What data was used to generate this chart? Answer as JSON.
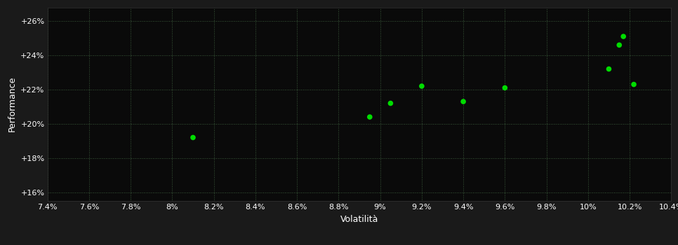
{
  "points_x": [
    0.081,
    0.0895,
    0.0905,
    0.092,
    0.094,
    0.096,
    0.101,
    0.1015,
    0.1017,
    0.1022
  ],
  "points_y": [
    0.192,
    0.204,
    0.212,
    0.222,
    0.213,
    0.221,
    0.232,
    0.246,
    0.251,
    0.223
  ],
  "dot_color": "#00dd00",
  "background_color": "#1a1a1a",
  "plot_bg_color": "#0a0a0a",
  "grid_color": "#3a5a3a",
  "tick_color": "#ffffff",
  "label_color": "#ffffff",
  "xlabel": "Volatilità",
  "ylabel": "Performance",
  "xlim": [
    0.074,
    0.104
  ],
  "ylim": [
    0.155,
    0.268
  ],
  "xticks": [
    0.074,
    0.076,
    0.078,
    0.08,
    0.082,
    0.084,
    0.086,
    0.088,
    0.09,
    0.092,
    0.094,
    0.096,
    0.098,
    0.1,
    0.102,
    0.104
  ],
  "yticks": [
    0.16,
    0.18,
    0.2,
    0.22,
    0.24,
    0.26
  ],
  "ytick_labels": [
    "+16%",
    "+18%",
    "+20%",
    "+22%",
    "+24%",
    "+26%"
  ],
  "xtick_labels": [
    "7.4%",
    "7.6%",
    "7.8%",
    "8%",
    "8.2%",
    "8.4%",
    "8.6%",
    "8.8%",
    "9%",
    "9.2%",
    "9.4%",
    "9.6%",
    "9.8%",
    "10%",
    "10.2%",
    "10.4%"
  ],
  "dot_size": 30,
  "font_size": 8,
  "label_font_size": 9
}
